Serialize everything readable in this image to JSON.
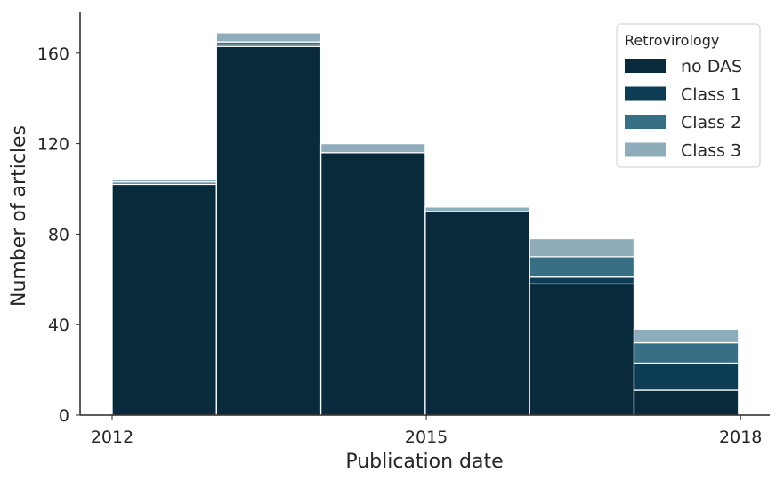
{
  "chart_data": {
    "type": "bar",
    "stacked": true,
    "categories": [
      "2012",
      "2013",
      "2014",
      "2015",
      "2016",
      "2017"
    ],
    "series": [
      {
        "name": "no DAS",
        "color": "#082a3b",
        "values": [
          102,
          163,
          116,
          90,
          58,
          11
        ]
      },
      {
        "name": "Class 1",
        "color": "#0c3d55",
        "values": [
          0,
          1,
          0,
          0,
          3,
          12
        ]
      },
      {
        "name": "Class 2",
        "color": "#376f85",
        "values": [
          1,
          1,
          0,
          0,
          9,
          9
        ]
      },
      {
        "name": "Class 3",
        "color": "#8eacba",
        "values": [
          1,
          4,
          4,
          2,
          8,
          6
        ]
      }
    ],
    "xlabel": "Publication date",
    "ylabel": "Number of articles",
    "xticks": [
      "2012",
      "2015",
      "2018"
    ],
    "yticks": [
      "0",
      "40",
      "80",
      "120",
      "160"
    ],
    "ylim": [
      0,
      178
    ],
    "legend": {
      "title": "Retrovirology",
      "placement": "top-right"
    },
    "grid": false
  }
}
